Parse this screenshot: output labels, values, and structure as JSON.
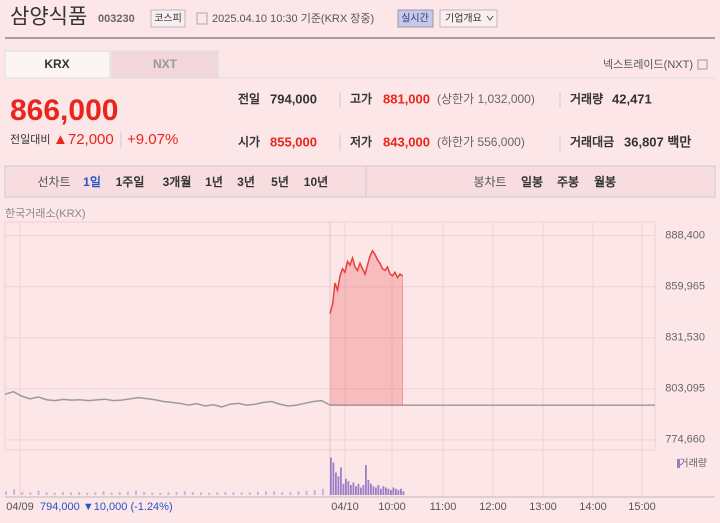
{
  "header": {
    "name": "삼양식품",
    "code": "003230",
    "market": "코스피",
    "timestamp": "2025.04.10 10:30 기준(KRX 장중)",
    "realtime": "실시간",
    "company_menu": "기업개요"
  },
  "tabs": [
    "KRX",
    "NXT"
  ],
  "nxt_link": "넥스트레이드(NXT)",
  "quote": {
    "price": "866,000",
    "change_label": "전일대비",
    "change": "▲72,000",
    "change_pct": "+9.07%"
  },
  "stats": [
    [
      {
        "label": "전일",
        "value": "794,000"
      },
      {
        "label": "고가",
        "value": "881,000",
        "note": "(상한가 1,032,000)"
      },
      {
        "label": "거래량",
        "value": "42,471"
      }
    ],
    [
      {
        "label": "시가",
        "value": "855,000"
      },
      {
        "label": "저가",
        "value": "843,000",
        "note": "(하한가 556,000)"
      },
      {
        "label": "거래대금",
        "value": "36,807 백만"
      }
    ]
  ],
  "periods": {
    "line_label": "선차트",
    "line": [
      "1일",
      "1주일",
      "3개월",
      "1년",
      "3년",
      "5년",
      "10년"
    ],
    "candle_label": "봉차트",
    "candle": [
      "일봉",
      "주봉",
      "월봉"
    ]
  },
  "chart_data": {
    "type": "line",
    "subtitle": "한국거래소(KRX)",
    "ylim": [
      769000,
      896000
    ],
    "yticks": [
      {
        "value": 888400,
        "label": "888,400"
      },
      {
        "value": 859965,
        "label": "859,965"
      },
      {
        "value": 831530,
        "label": "831,530"
      },
      {
        "value": 803095,
        "label": "803,095"
      },
      {
        "value": 774660,
        "label": "774,660"
      }
    ],
    "reference_line": 794000,
    "series": [
      {
        "color": "#9a9a9a",
        "values": [
          800000,
          801500,
          799000,
          797500,
          798500,
          797000,
          796500,
          797200,
          796800,
          797000,
          796500,
          796900,
          797300,
          796500,
          796800,
          797500,
          798200,
          797600,
          797000,
          796000,
          795500,
          795000,
          794000,
          794800,
          793500,
          794200,
          793000,
          794500,
          795000,
          794000,
          794500,
          795500,
          796000,
          794500,
          793500,
          794000,
          795000,
          796000,
          796500,
          794000
        ]
      },
      {
        "color": "#e8403a",
        "values": [
          845000,
          850000,
          862000,
          858000,
          866000,
          870000,
          868000,
          874000,
          872000,
          876000,
          871000,
          869000,
          873000,
          870000,
          867000,
          872000,
          877000,
          880000,
          878000,
          875000,
          873000,
          870000,
          869000,
          871000,
          867000,
          866000,
          868000,
          865000,
          867000,
          866000
        ]
      }
    ],
    "x_labels": [
      "04/09",
      "04/10",
      "10:00",
      "11:00",
      "12:00",
      "13:00",
      "14:00",
      "15:00"
    ],
    "volume": {
      "name": "거래량",
      "color": "#9a7fc8",
      "ylim": [
        0,
        3200
      ],
      "previous": [
        300,
        450,
        250,
        200,
        350,
        220,
        180,
        260,
        200,
        240,
        190,
        210,
        300,
        180,
        220,
        260,
        350,
        240,
        200,
        180,
        220,
        260,
        300,
        240,
        200,
        180,
        220,
        260,
        240,
        200,
        220,
        260,
        300,
        280,
        240,
        260,
        300,
        340,
        380,
        500
      ],
      "today": [
        3000,
        2600,
        1800,
        1500,
        2200,
        900,
        1300,
        1100,
        800,
        1000,
        700,
        900,
        600,
        800,
        2400,
        1200,
        900,
        700,
        600,
        800,
        500,
        700,
        600,
        500,
        400,
        600,
        500,
        400,
        500,
        300
      ]
    },
    "footer": {
      "price": "794,000",
      "change": "▼10,000",
      "pct": "(-1.24%)"
    }
  }
}
